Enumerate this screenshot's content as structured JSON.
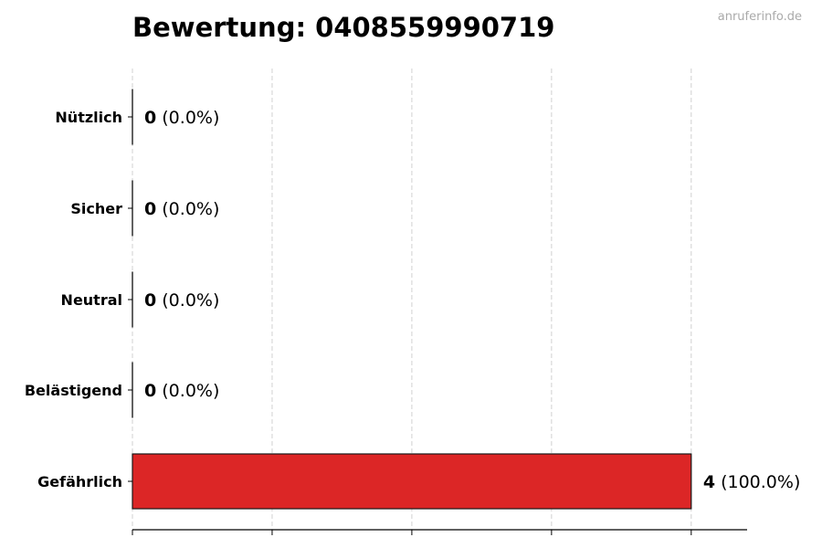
{
  "chart_data": {
    "type": "bar",
    "orientation": "horizontal",
    "title": "Bewertung: 0408559990719",
    "watermark": "anruferinfo.de",
    "categories": [
      "Nützlich",
      "Sicher",
      "Neutral",
      "Belästigend",
      "Gefährlich"
    ],
    "values": [
      0,
      0,
      0,
      0,
      4
    ],
    "percent_labels": [
      "(0.0%)",
      "(0.0%)",
      "(0.0%)",
      "(0.0%)",
      "(100.0%)"
    ],
    "xticks": [
      0,
      1,
      2,
      3,
      4
    ],
    "show_tick_labels": false,
    "xlim": [
      0,
      4.4
    ],
    "grid": "x, dashed",
    "bar_color": "#dc2626",
    "bar_edge_color": "#1a1a1a",
    "xlabel": "",
    "ylabel": ""
  }
}
